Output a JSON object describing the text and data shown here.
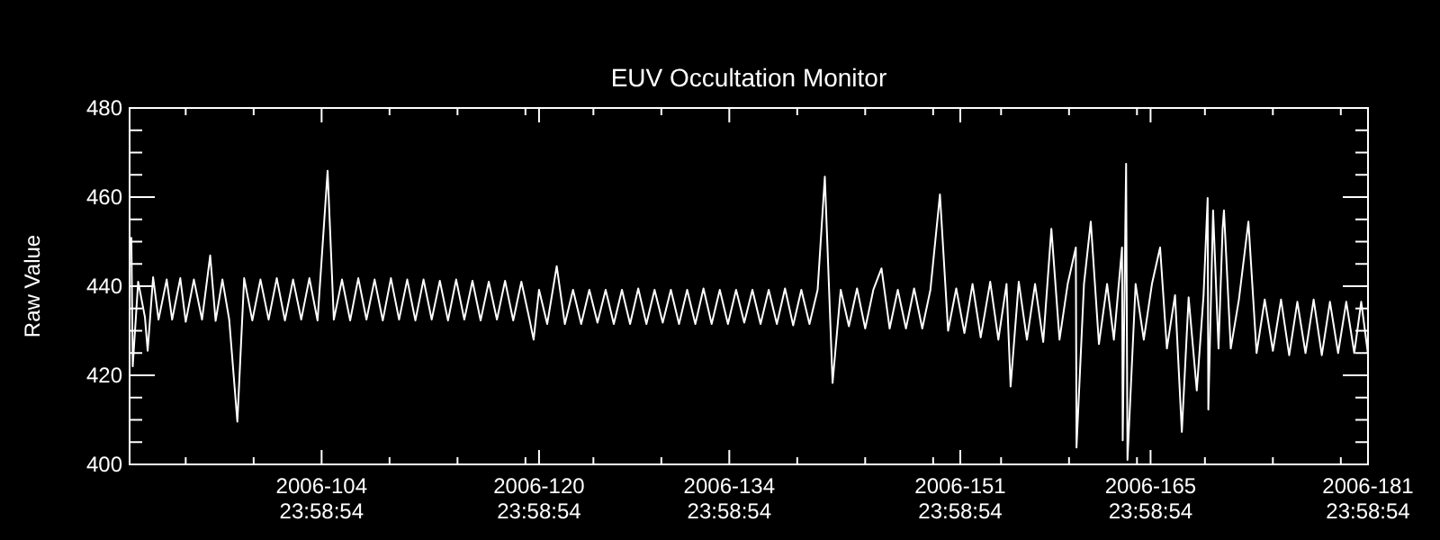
{
  "chart_data": {
    "type": "line",
    "title": "EUV Occultation Monitor",
    "ylabel": "Raw Value",
    "xlim": [
      "2006-03-31T20:53",
      "2006-06-30T23:58:54"
    ],
    "ylim": [
      400,
      480
    ],
    "xticks": [
      {
        "value": "2006-04-04T23:58:54",
        "label": null
      },
      {
        "value": "2006-04-09T23:58:54",
        "label": null
      },
      {
        "value": "2006-04-14T23:58:54",
        "label": "2006-104\n23:58:54"
      },
      {
        "value": "2006-04-19T23:58:54",
        "label": null
      },
      {
        "value": "2006-04-24T23:58:54",
        "label": null
      },
      {
        "value": "2006-04-29T23:58:54",
        "label": null
      },
      {
        "value": "2006-04-30T23:58:54",
        "label": "2006-120\n23:58:54"
      },
      {
        "value": "2006-05-04T23:58:54",
        "label": null
      },
      {
        "value": "2006-05-09T23:58:54",
        "label": null
      },
      {
        "value": "2006-05-14T23:58:54",
        "label": "2006-134\n23:58:54"
      },
      {
        "value": "2006-05-19T23:58:54",
        "label": null
      },
      {
        "value": "2006-05-24T23:58:54",
        "label": null
      },
      {
        "value": "2006-05-29T23:58:54",
        "label": null
      },
      {
        "value": "2006-05-31T23:58:54",
        "label": "2006-151\n23:58:54"
      },
      {
        "value": "2006-06-03T23:58:54",
        "label": null
      },
      {
        "value": "2006-06-08T23:58:54",
        "label": null
      },
      {
        "value": "2006-06-13T23:58:54",
        "label": null
      },
      {
        "value": "2006-06-14T23:58:54",
        "label": "2006-165\n23:58:54"
      },
      {
        "value": "2006-06-18T23:58:54",
        "label": null
      },
      {
        "value": "2006-06-23T23:58:54",
        "label": null
      },
      {
        "value": "2006-06-28T23:58:54",
        "label": null
      },
      {
        "value": "2006-06-30T23:58:54",
        "label": "2006-181\n23:58:54"
      }
    ],
    "yticks": [
      400,
      {
        "value": 405,
        "label": null
      },
      {
        "value": 410,
        "label": null
      },
      {
        "value": 415,
        "label": null
      },
      420,
      {
        "value": 425,
        "label": null
      },
      {
        "value": 430,
        "label": null
      },
      {
        "value": 435,
        "label": null
      },
      440,
      {
        "value": 445,
        "label": null
      },
      {
        "value": 450,
        "label": null
      },
      {
        "value": 455,
        "label": null
      },
      460,
      {
        "value": 465,
        "label": null
      },
      {
        "value": 470,
        "label": null
      },
      {
        "value": 475,
        "label": null
      },
      480
    ],
    "grid": false,
    "marker": "none",
    "line_style": "solid",
    "series": [
      {
        "color": "#ffffff",
        "x": [
          "2006-04-01T00:00",
          "2006-04-01T02:24",
          "2006-04-01T12:00",
          "2006-04-02T00:00",
          "2006-04-02T04:48",
          "2006-04-02T14:24",
          "2006-04-03T00:00",
          "2006-04-03T14:24",
          "2006-04-04T00:00",
          "2006-04-04T14:24",
          "2006-04-05T00:00",
          "2006-04-05T14:24",
          "2006-04-06T04:48",
          "2006-04-06T19:12",
          "2006-04-07T04:48",
          "2006-04-07T16:48",
          "2006-04-08T04:48",
          "2006-04-08T19:12",
          "2006-04-09T07:12",
          "2006-04-09T21:36",
          "2006-04-10T12:00",
          "2006-04-11T02:24",
          "2006-04-11T16:48",
          "2006-04-12T07:12",
          "2006-04-12T21:36",
          "2006-04-13T12:00",
          "2006-04-14T02:24",
          "2006-04-14T16:48",
          "2006-04-15T10:34",
          "2006-04-15T21:36",
          "2006-04-16T12:00",
          "2006-04-17T02:24",
          "2006-04-17T16:48",
          "2006-04-18T07:12",
          "2006-04-18T21:36",
          "2006-04-19T12:00",
          "2006-04-20T02:24",
          "2006-04-20T16:48",
          "2006-04-21T07:12",
          "2006-04-21T21:36",
          "2006-04-22T12:00",
          "2006-04-23T02:24",
          "2006-04-23T16:48",
          "2006-04-24T07:12",
          "2006-04-24T21:36",
          "2006-04-25T12:00",
          "2006-04-26T02:24",
          "2006-04-26T16:48",
          "2006-04-27T07:12",
          "2006-04-27T21:36",
          "2006-04-28T12:00",
          "2006-04-29T02:24",
          "2006-04-29T16:48",
          "2006-04-30T07:12",
          "2006-04-30T14:24",
          "2006-05-01T00:00",
          "2006-05-01T14:24",
          "2006-05-02T07:12",
          "2006-05-02T21:36",
          "2006-05-03T12:00",
          "2006-05-04T02:24",
          "2006-05-04T16:48",
          "2006-05-05T07:12",
          "2006-05-05T21:36",
          "2006-05-06T12:00",
          "2006-05-07T02:24",
          "2006-05-07T16:48",
          "2006-05-08T07:12",
          "2006-05-08T21:36",
          "2006-05-09T12:00",
          "2006-05-10T02:24",
          "2006-05-10T16:48",
          "2006-05-11T07:12",
          "2006-05-11T21:36",
          "2006-05-12T12:00",
          "2006-05-13T02:24",
          "2006-05-13T16:48",
          "2006-05-14T07:12",
          "2006-05-14T21:36",
          "2006-05-15T12:00",
          "2006-05-16T02:24",
          "2006-05-16T16:48",
          "2006-05-17T07:12",
          "2006-05-17T21:36",
          "2006-05-18T12:00",
          "2006-05-19T02:24",
          "2006-05-19T16:48",
          "2006-05-20T07:12",
          "2006-05-20T21:36",
          "2006-05-21T12:00",
          "2006-05-22T00:43",
          "2006-05-22T14:24",
          "2006-05-23T04:48",
          "2006-05-23T19:12",
          "2006-05-24T09:36",
          "2006-05-25T00:00",
          "2006-05-25T14:24",
          "2006-05-26T04:48",
          "2006-05-26T19:12",
          "2006-05-27T09:36",
          "2006-05-28T00:00",
          "2006-05-28T14:24",
          "2006-05-29T04:48",
          "2006-05-29T19:12",
          "2006-05-30T12:00",
          "2006-05-31T02:24",
          "2006-05-31T16:48",
          "2006-06-01T07:12",
          "2006-06-01T21:36",
          "2006-06-02T12:00",
          "2006-06-03T04:48",
          "2006-06-03T19:12",
          "2006-06-04T09:36",
          "2006-06-04T16:48",
          "2006-06-05T07:12",
          "2006-06-05T21:36",
          "2006-06-06T12:00",
          "2006-06-07T02:24",
          "2006-06-07T16:48",
          "2006-06-08T07:12",
          "2006-06-08T21:36",
          "2006-06-09T12:00",
          "2006-06-09T13:12",
          "2006-06-10T02:24",
          "2006-06-10T14:24",
          "2006-06-11T04:48",
          "2006-06-11T19:12",
          "2006-06-12T07:12",
          "2006-06-12T21:36",
          "2006-06-12T22:48",
          "2006-06-13T04:48",
          "2006-06-13T07:12",
          "2006-06-13T21:36",
          "2006-06-14T12:00",
          "2006-06-15T02:24",
          "2006-06-15T16:48",
          "2006-06-16T04:48",
          "2006-06-16T19:12",
          "2006-06-17T07:12",
          "2006-06-17T19:12",
          "2006-06-18T09:36",
          "2006-06-18T21:36",
          "2006-06-19T04:48",
          "2006-06-19T06:00",
          "2006-06-19T14:24",
          "2006-06-20T00:00",
          "2006-06-20T07:12",
          "2006-06-20T09:36",
          "2006-06-20T21:36",
          "2006-06-21T12:00",
          "2006-06-22T04:48",
          "2006-06-22T19:12",
          "2006-06-23T09:36",
          "2006-06-24T00:00",
          "2006-06-24T14:24",
          "2006-06-25T04:48",
          "2006-06-25T19:12",
          "2006-06-26T09:36",
          "2006-06-27T00:00",
          "2006-06-27T14:24",
          "2006-06-28T04:48",
          "2006-06-28T19:12",
          "2006-06-29T09:36",
          "2006-06-29T23:45",
          "2006-06-30T12:00",
          "2006-06-30T23:45"
        ],
        "values": [
          451,
          422,
          441,
          433,
          425.5,
          442,
          432.5,
          441.5,
          432.5,
          441.8,
          432,
          441.5,
          432.5,
          446.9,
          432.2,
          441.5,
          432.5,
          409.6,
          441.8,
          432.3,
          441.5,
          432.5,
          441.8,
          432.3,
          441.5,
          432.5,
          441.8,
          432.3,
          465.9,
          432.5,
          441.5,
          432.3,
          441.8,
          432.5,
          441.5,
          432.3,
          441.8,
          432.5,
          441.5,
          432.3,
          441.5,
          432.5,
          441.2,
          432.3,
          441.5,
          432.5,
          441.2,
          432.3,
          441,
          432.5,
          441.2,
          432.3,
          441,
          432.5,
          428,
          439.2,
          431.5,
          444.5,
          431.5,
          439.2,
          431.5,
          439.2,
          431.8,
          439.2,
          431.5,
          439.2,
          431.5,
          439.5,
          431.5,
          439.2,
          431.8,
          439.2,
          431.5,
          439.2,
          431.5,
          439.5,
          431.5,
          439.2,
          431.5,
          439.2,
          431.8,
          439.2,
          431.5,
          439.2,
          431.5,
          439.5,
          431.2,
          439.2,
          431.5,
          439.2,
          464.6,
          418.3,
          439.2,
          431,
          439.5,
          430.5,
          439.2,
          444,
          430.5,
          439.2,
          430.5,
          439.5,
          430.5,
          439.2,
          460.6,
          430,
          439.5,
          429.5,
          440.5,
          428.5,
          441,
          428,
          440.5,
          417.5,
          441,
          428,
          440.5,
          427.5,
          452.9,
          428,
          440.5,
          448.7,
          403.8,
          440.5,
          454.5,
          427,
          440.5,
          428,
          448.7,
          405.4,
          467.5,
          401,
          440.5,
          428,
          440.5,
          448.7,
          426,
          438,
          407.3,
          437.5,
          416.6,
          438,
          459.8,
          412.3,
          457,
          426,
          452.9,
          457,
          426,
          437,
          454.5,
          425,
          437,
          425.5,
          437,
          424.5,
          436.5,
          425,
          437,
          424.5,
          436.5,
          425,
          436.5,
          425,
          436.5,
          425
        ]
      }
    ]
  }
}
